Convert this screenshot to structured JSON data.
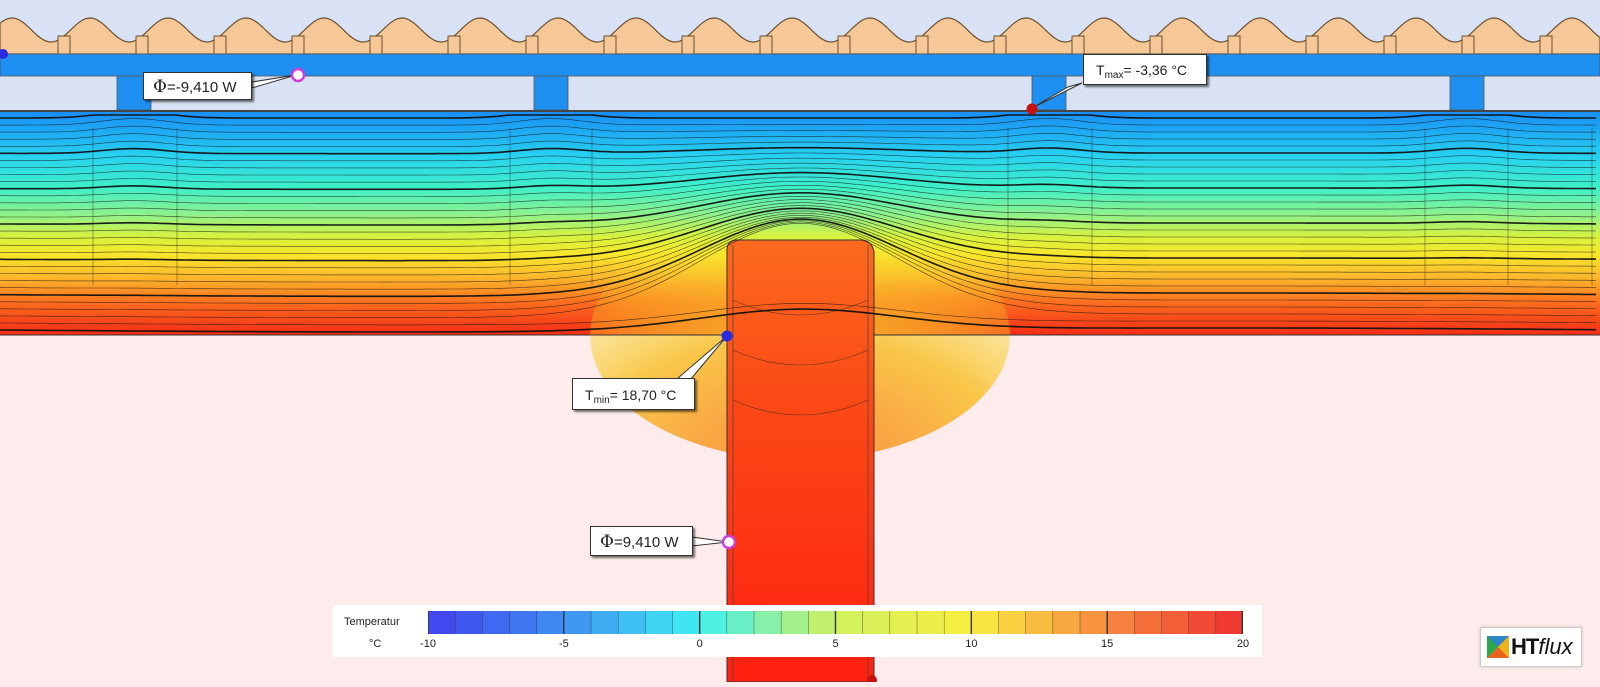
{
  "callouts": {
    "phi_top": {
      "symbol": "Φ",
      "text": "=-9,410 W"
    },
    "tmax": {
      "symbol": "T",
      "sub": "max",
      "text": "= -3,36 °C"
    },
    "tmin": {
      "symbol": "T",
      "sub": "min",
      "text": "= 18,70 °C"
    },
    "phi_bottom": {
      "symbol": "Φ",
      "text": "=9,410 W"
    }
  },
  "legend": {
    "title": "Temperatur",
    "unit": "°C",
    "ticks": [
      "-10",
      "-5",
      "0",
      "5",
      "10",
      "15",
      "20"
    ],
    "range": [
      -10,
      20
    ],
    "step_count": 30,
    "colors": [
      "#4040ee",
      "#3f8ff2",
      "#3ff0f2",
      "#cff060",
      "#f8ee40",
      "#f88a40",
      "#ee3030"
    ]
  },
  "logo": {
    "bold": "HT",
    "italic": "flux"
  },
  "colors": {
    "sky": "#d8e2f4",
    "tile": "#f6c897",
    "batten": "#1e90f2",
    "room": "#fdeceb",
    "rafter_core": "#ff2a10",
    "marker_blue": "#2a2ae0",
    "marker_red": "#c81010",
    "marker_magenta": "#d03cd8"
  }
}
